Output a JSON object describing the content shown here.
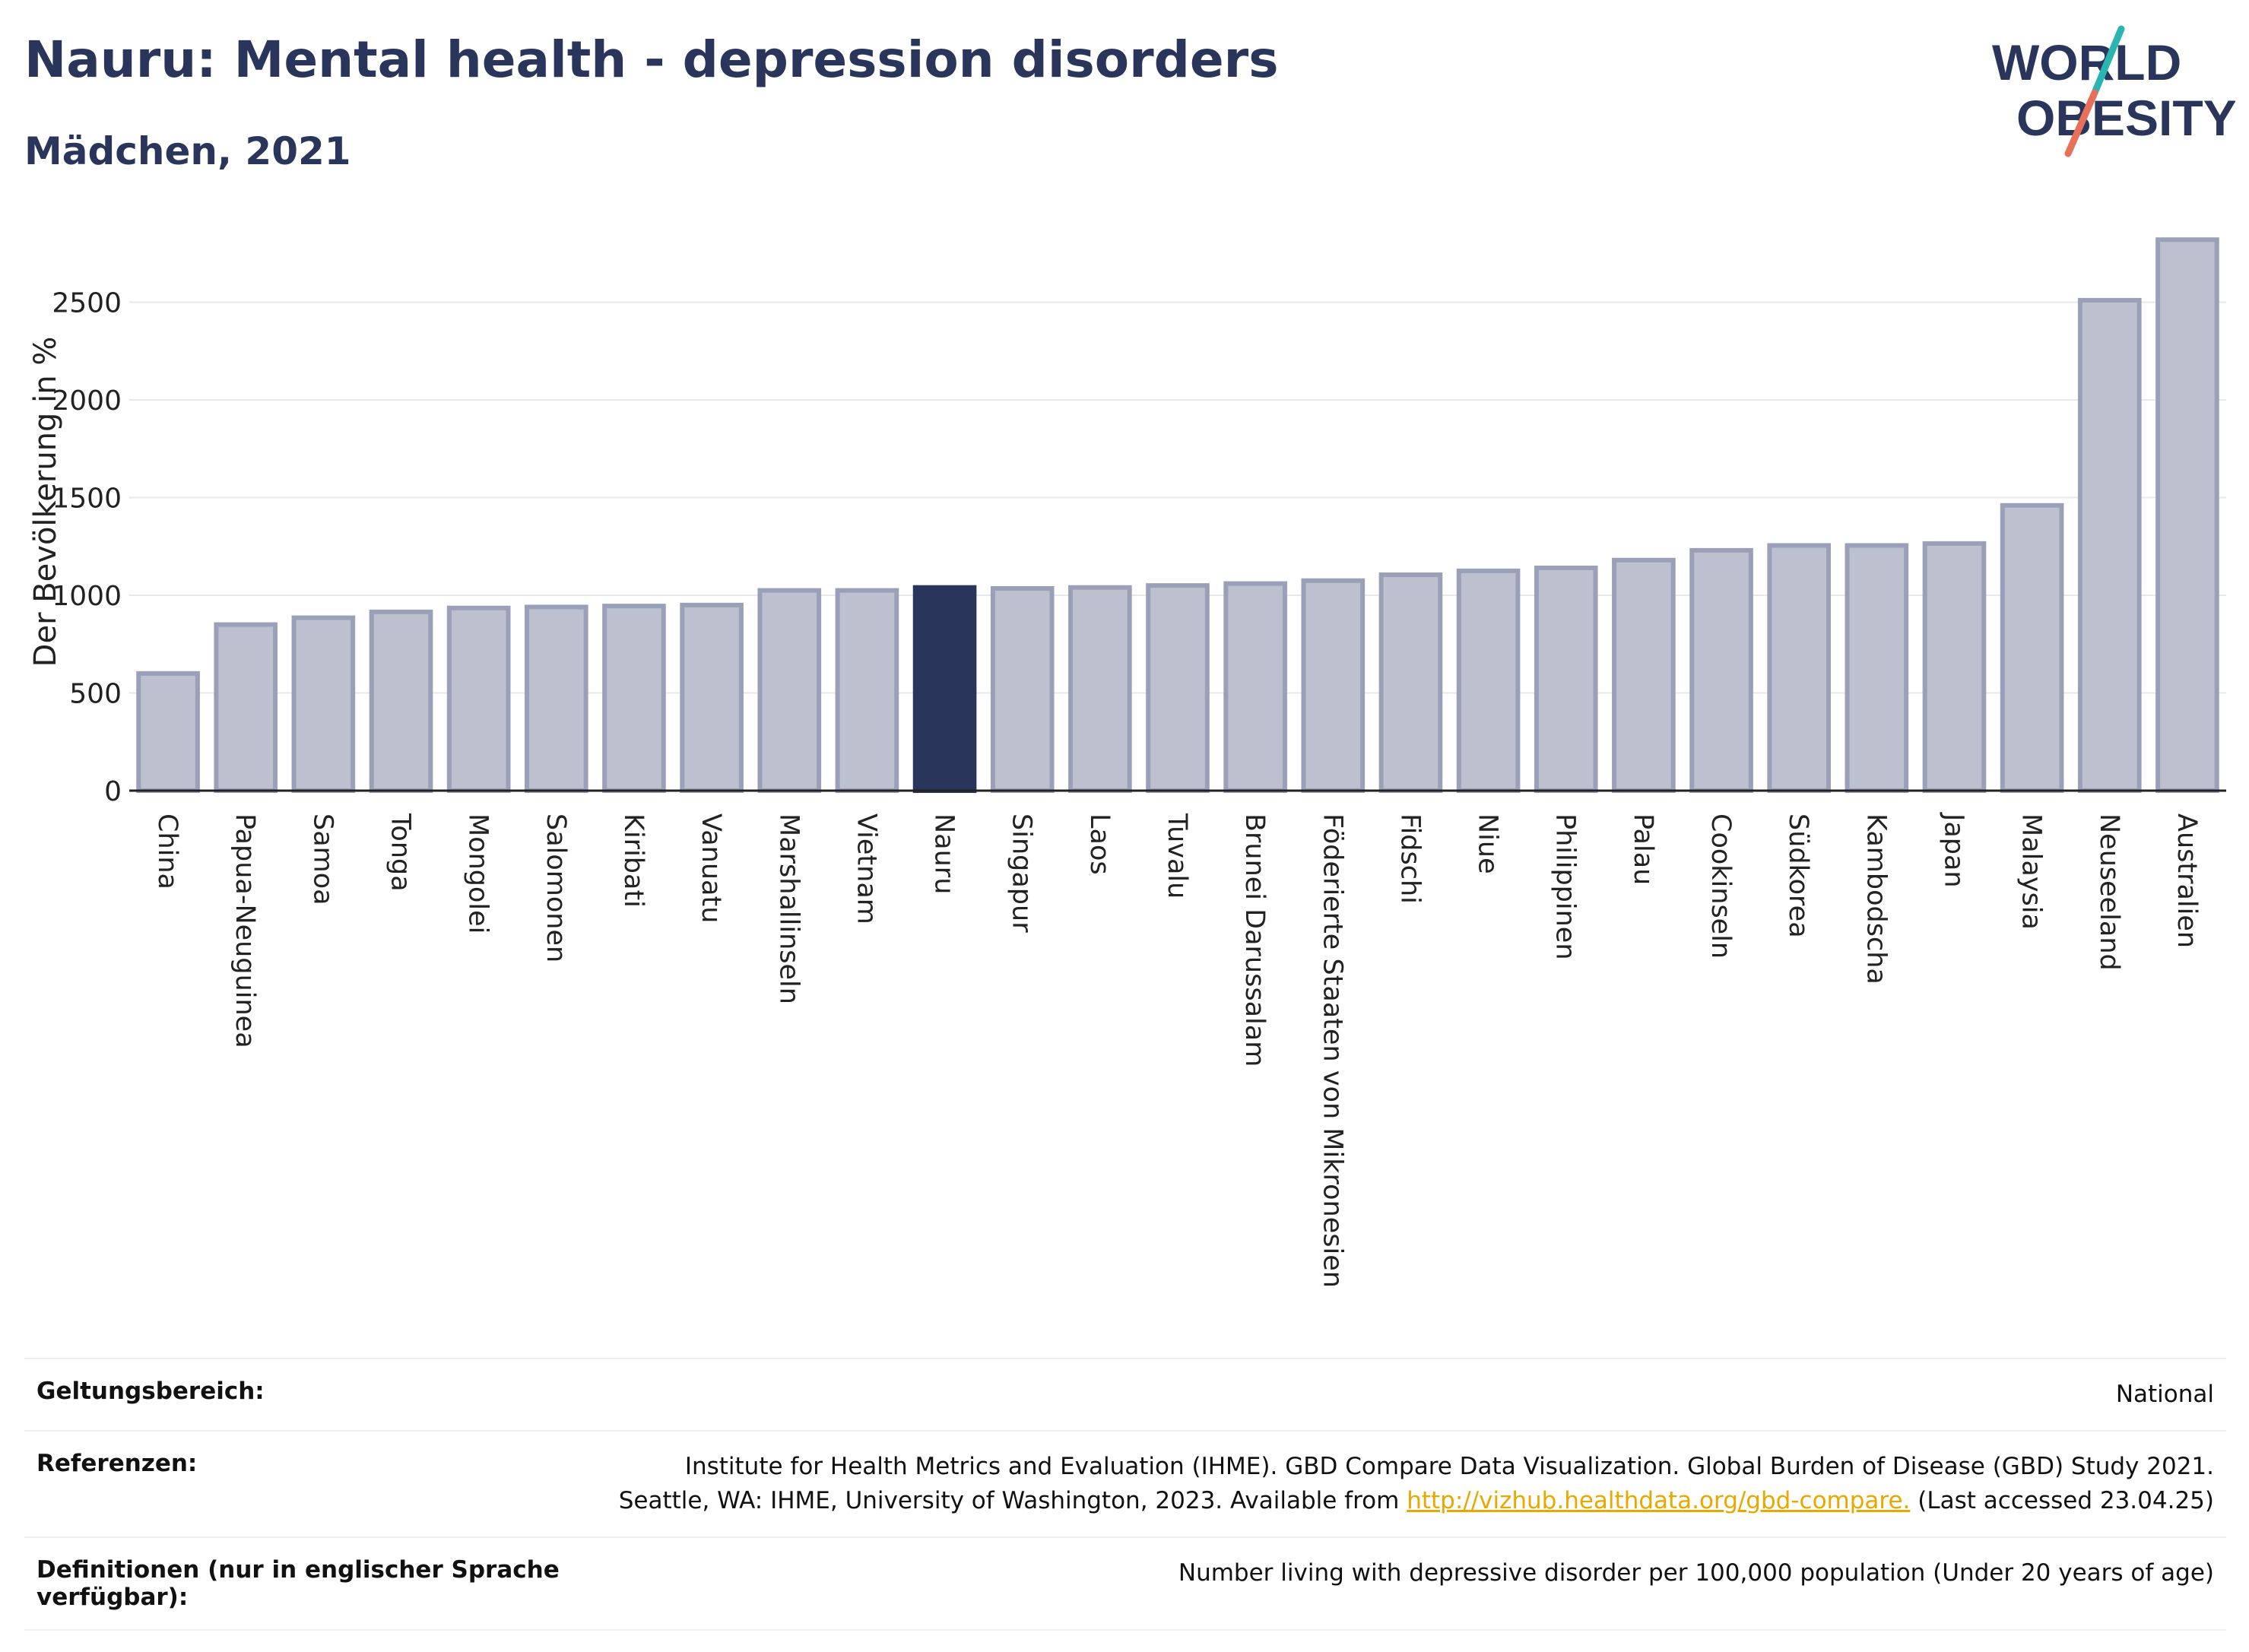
{
  "title": "Nauru: Mental health - depression disorders",
  "subtitle": "Mädchen, 2021",
  "logo": {
    "line1": "WORLD",
    "line2": "OBESITY"
  },
  "colors": {
    "highlight": "#2a355c",
    "bar_fill": "#bcc0cf",
    "bar_stroke": "#9aa0b8",
    "grid": "#e6e8ee",
    "link": "#e8a800"
  },
  "chart_data": {
    "type": "bar",
    "ylabel": "Der Bevölkerung in %",
    "ylim": [
      0,
      2900
    ],
    "yticks": [
      0,
      500,
      1000,
      1500,
      2000,
      2500
    ],
    "grid": true,
    "highlight": "Nauru",
    "categories": [
      "China",
      "Papua-Neuguinea",
      "Samoa",
      "Tonga",
      "Mongolei",
      "Salomonen",
      "Kiribati",
      "Vanuatu",
      "Marshallinseln",
      "Vietnam",
      "Nauru",
      "Singapur",
      "Laos",
      "Tuvalu",
      "Brunei Darussalam",
      "Föderierte Staaten von Mikronesien",
      "Fidschi",
      "Niue",
      "Philippinen",
      "Palau",
      "Cookinseln",
      "Südkorea",
      "Kambodscha",
      "Japan",
      "Malaysia",
      "Neuseeland",
      "Australien"
    ],
    "values": [
      600,
      850,
      885,
      915,
      935,
      940,
      945,
      950,
      1025,
      1025,
      1040,
      1035,
      1040,
      1050,
      1060,
      1075,
      1105,
      1125,
      1140,
      1180,
      1230,
      1255,
      1255,
      1265,
      1460,
      2510,
      2820
    ]
  },
  "meta": {
    "scope_label": "Geltungsbereich:",
    "scope_value": "National",
    "refs_label": "Referenzen:",
    "refs_line1": "Institute for Health Metrics and Evaluation (IHME). GBD Compare Data Visualization. Global Burden of Disease (GBD) Study 2021.",
    "refs_line2_pre": "Seattle, WA: IHME, University of Washington, 2023. Available from ",
    "refs_link": "http://vizhub.healthdata.org/gbd-compare.",
    "refs_line2_post": " (Last accessed 23.04.25)",
    "def_label": "Definitionen (nur in englischer Sprache verfügbar):",
    "def_value": "Number living with depressive disorder per 100,000 population (Under 20 years of age)"
  }
}
